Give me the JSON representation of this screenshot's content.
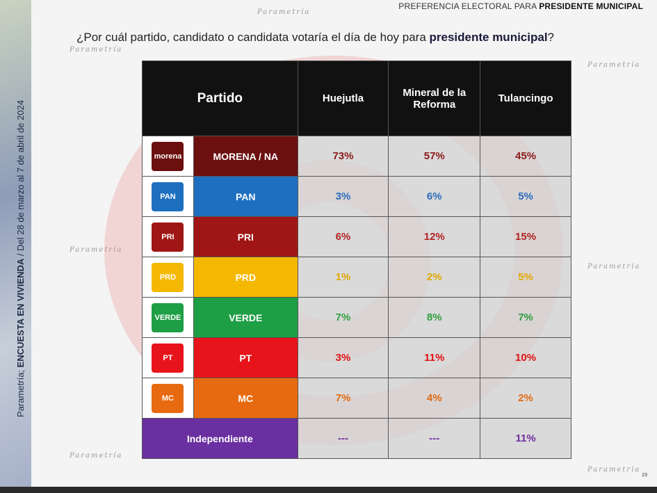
{
  "header": {
    "prefix": "PREFERENCIA ELECTORAL PARA ",
    "bold": "PRESIDENTE MUNICIPAL"
  },
  "question": {
    "text": "¿Por cuál partido, candidato o candidata votaría el día de hoy para ",
    "bold": "presidente municipal",
    "end": "?"
  },
  "side": {
    "prefix": "Parametría; ",
    "bold": "ENCUESTA EN VIVIENDA",
    "suffix": " / Del 28 de marzo al 7 de abril de 2024"
  },
  "watermark": "Parametría",
  "page_number": "23",
  "table": {
    "headers": [
      "Partido",
      "Huejutla",
      "Mineral de la Reforma",
      "Tulancingo"
    ],
    "rows": [
      {
        "party": "MORENA / NA",
        "logo": "morena",
        "color": "#6b0f0f",
        "text_color": "#8b1a1a",
        "values": [
          "73%",
          "57%",
          "45%"
        ]
      },
      {
        "party": "PAN",
        "logo": "PAN",
        "color": "#1f6fc0",
        "text_color": "#2a6ebb",
        "values": [
          "3%",
          "6%",
          "5%"
        ]
      },
      {
        "party": "PRI",
        "logo": "PRI",
        "color": "#a01515",
        "text_color": "#b22222",
        "values": [
          "6%",
          "12%",
          "15%"
        ]
      },
      {
        "party": "PRD",
        "logo": "PRD",
        "color": "#f5b800",
        "text_color": "#e0a800",
        "values": [
          "1%",
          "2%",
          "5%"
        ]
      },
      {
        "party": "VERDE",
        "logo": "VERDE",
        "color": "#1e9e45",
        "text_color": "#2e9e3e",
        "values": [
          "7%",
          "8%",
          "7%"
        ]
      },
      {
        "party": "PT",
        "logo": "PT",
        "color": "#e8141b",
        "text_color": "#e01010",
        "values": [
          "3%",
          "11%",
          "10%"
        ]
      },
      {
        "party": "MC",
        "logo": "MC",
        "color": "#e86a10",
        "text_color": "#e06a10",
        "values": [
          "7%",
          "4%",
          "2%"
        ]
      }
    ],
    "independent": {
      "party": "Independiente",
      "color": "#6a2fa0",
      "text_color": "#7030a0",
      "values": [
        "---",
        "---",
        "11%"
      ]
    }
  }
}
